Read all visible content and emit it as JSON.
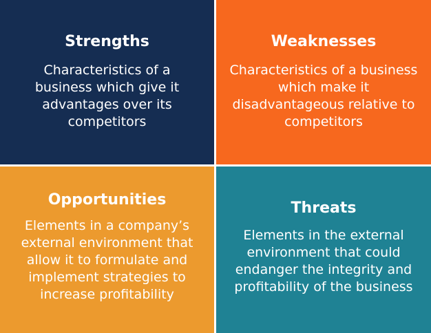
{
  "quadrants": {
    "strengths": {
      "title": "Strengths",
      "body": "Characteristics of a business which give it advantages over its competitors",
      "color": "#152d52"
    },
    "weaknesses": {
      "title": "Weaknesses",
      "body": "Characteristics of a business which make it disadvantageous relative to competitors",
      "color": "#f7681e"
    },
    "opportunities": {
      "title": "Opportunities",
      "body": "Elements in a company’s external environment that allow it to formulate and implement strategies to increase profitability",
      "color": "#ec9a2e"
    },
    "threats": {
      "title": "Threats",
      "body": "Elements in the external environment that could endanger the integrity and profitability of the business",
      "color": "#1f8294"
    }
  }
}
